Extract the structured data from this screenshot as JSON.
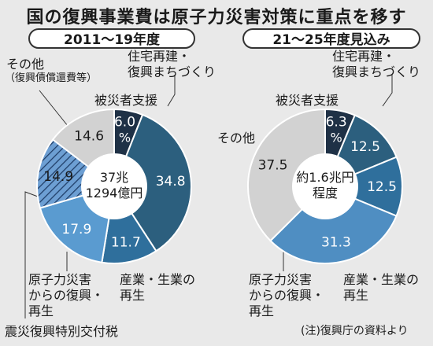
{
  "title": "国の復興事業費は原子力災害対策に重点を移す",
  "note": "(注)復興庁の資料より",
  "colors": {
    "navy": "#1f3146",
    "teal": "#2c5f7e",
    "blue": "#4f8ec2",
    "light_blue": "#5a9bd0",
    "hatch": "#6d9fd3",
    "gray": "#d2d2d2"
  },
  "chart_data": [
    {
      "type": "pie",
      "title": "2011～19年度",
      "center_label_1": "37兆",
      "center_label_2": "1294億円",
      "unit": "%",
      "slices": [
        {
          "name": "被災者支援",
          "value": 6.0,
          "value_label": "6.0",
          "unit_label": "%",
          "color": "#1f3146",
          "text_color": "#ffffff"
        },
        {
          "name": "住宅再建・復興まちづくり",
          "value": 34.8,
          "value_label": "34.8",
          "color": "#2c5f7e",
          "text_color": "#ffffff"
        },
        {
          "name": "産業・生業の再生",
          "value": 11.7,
          "value_label": "11.7",
          "color": "#2f6f9c",
          "text_color": "#ffffff"
        },
        {
          "name": "原子力災害からの復興・再生",
          "value": 17.9,
          "value_label": "17.9",
          "color": "#5a9bd0",
          "text_color": "#ffffff"
        },
        {
          "name": "震災復興特別交付税",
          "value": 14.9,
          "value_label": "14.9",
          "color": "#6d9fd3",
          "text_color": "#1a1a1a",
          "hatched": true
        },
        {
          "name": "その他（復興債償還費等）",
          "value": 14.6,
          "value_label": "14.6",
          "color": "#d2d2d2",
          "text_color": "#1a1a1a"
        }
      ],
      "labels": {
        "victim": "被災者支援",
        "housing_1": "住宅再建・",
        "housing_2": "復興まちづくり",
        "industry_1": "産業・生業の",
        "industry_2": "再生",
        "nuclear_1": "原子力災害",
        "nuclear_2": "からの復興・",
        "nuclear_3": "再生",
        "tax": "震災復興特別交付税",
        "other_1": "その他",
        "other_2": "（復興債償還費等）"
      }
    },
    {
      "type": "pie",
      "title": "21～25年度見込み",
      "center_label_1": "約1.6兆円",
      "center_label_2": "程度",
      "unit": "%",
      "slices": [
        {
          "name": "被災者支援",
          "value": 6.3,
          "value_label": "6.3",
          "unit_label": "%",
          "color": "#1f3146",
          "text_color": "#ffffff"
        },
        {
          "name": "住宅再建・復興まちづくり",
          "value": 12.5,
          "value_label": "12.5",
          "color": "#2c5f7e",
          "text_color": "#ffffff"
        },
        {
          "name": "産業・生業の再生",
          "value": 12.5,
          "value_label": "12.5",
          "color": "#2f6f9c",
          "text_color": "#ffffff"
        },
        {
          "name": "原子力災害からの復興・再生",
          "value": 31.3,
          "value_label": "31.3",
          "color": "#4f8ec2",
          "text_color": "#ffffff"
        },
        {
          "name": "その他",
          "value": 37.5,
          "value_label": "37.5",
          "color": "#d2d2d2",
          "text_color": "#1a1a1a"
        }
      ],
      "labels": {
        "victim": "被災者支援",
        "housing_1": "住宅再建・",
        "housing_2": "復興まちづくり",
        "industry_1": "産業・生業の",
        "industry_2": "再生",
        "nuclear_1": "原子力災害",
        "nuclear_2": "からの復興・",
        "nuclear_3": "再生",
        "other": "その他"
      }
    }
  ]
}
